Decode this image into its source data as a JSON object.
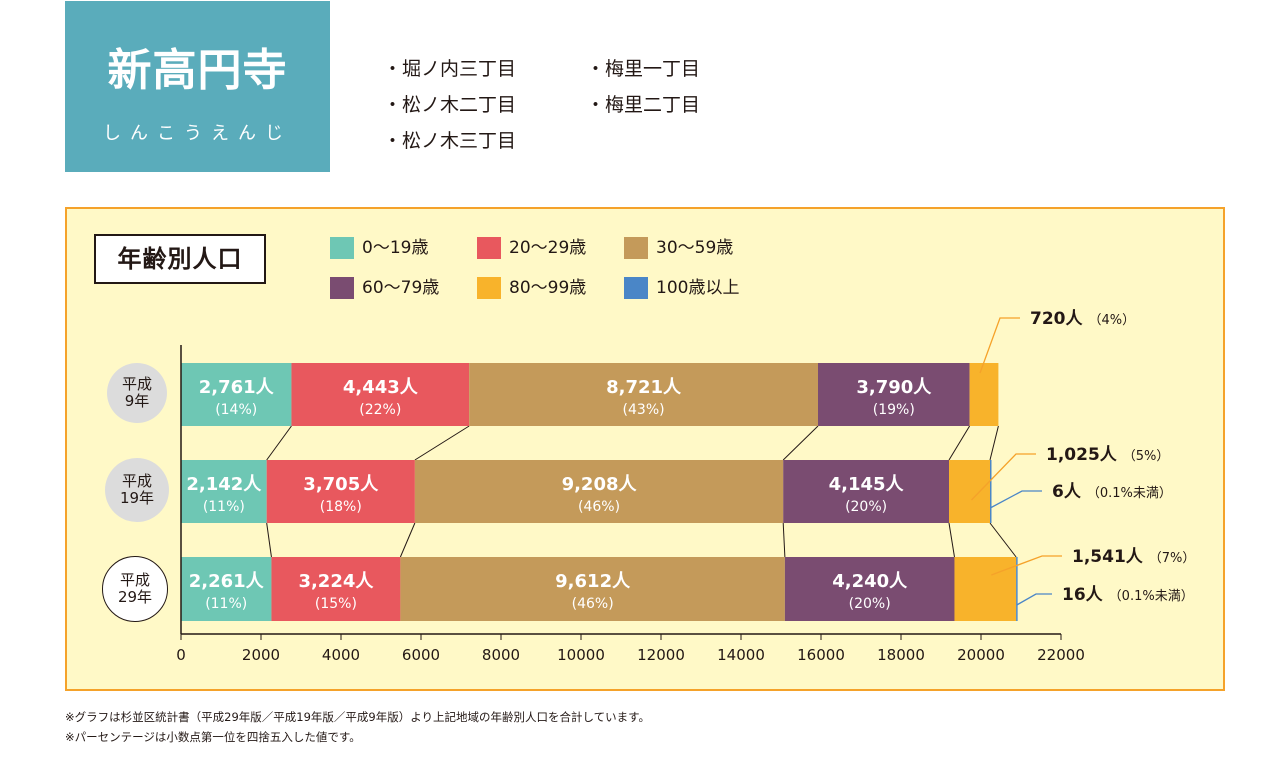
{
  "header": {
    "title": "新高円寺",
    "reading": "しんこうえんじ",
    "areas": [
      "・堀ノ内三丁目",
      "・松ノ木二丁目",
      "・松ノ木三丁目",
      "・梅里一丁目",
      "・梅里二丁目"
    ]
  },
  "chart_title": "年齢別人口",
  "footnotes": [
    "※グラフは杉並区統計書（平成29年版／平成19年版／平成9年版）より上記地域の年齢別人口を合計しています。",
    "※パーセンテージは小数点第一位を四捨五入した値です。"
  ],
  "colors": {
    "0-19": "#6ec7b4",
    "20-29": "#e8585e",
    "30-59": "#c49a5a",
    "60-79": "#7a4c71",
    "80-99": "#f8b32b",
    "100+": "#4a86c7",
    "panel_bg": "#fff9c7",
    "panel_border": "#f5a22a",
    "title_bg": "#5aacbb",
    "leader_line": "#f5a22a",
    "leader_line_blue": "#4a86c7"
  },
  "chart_data": {
    "type": "bar",
    "orientation": "horizontal",
    "stacked": true,
    "categories": [
      "平成9年",
      "平成19年",
      "平成29年"
    ],
    "category_lines": [
      [
        "平成",
        "9年"
      ],
      [
        "平成",
        "19年"
      ],
      [
        "平成",
        "29年"
      ]
    ],
    "series": [
      {
        "name": "0〜19歳",
        "key": "0-19",
        "values": [
          2761,
          2142,
          2261
        ],
        "value_labels": [
          "2,761人",
          "2,142人",
          "2,261人"
        ],
        "pct_labels": [
          "(14%)",
          "(11%)",
          "(11%)"
        ]
      },
      {
        "name": "20〜29歳",
        "key": "20-29",
        "values": [
          4443,
          3705,
          3224
        ],
        "value_labels": [
          "4,443人",
          "3,705人",
          "3,224人"
        ],
        "pct_labels": [
          "(22%)",
          "(18%)",
          "(15%)"
        ]
      },
      {
        "name": "30〜59歳",
        "key": "30-59",
        "values": [
          8721,
          9208,
          9612
        ],
        "value_labels": [
          "8,721人",
          "9,208人",
          "9,612人"
        ],
        "pct_labels": [
          "(43%)",
          "(46%)",
          "(46%)"
        ]
      },
      {
        "name": "60〜79歳",
        "key": "60-79",
        "values": [
          3790,
          4145,
          4240
        ],
        "value_labels": [
          "3,790人",
          "4,145人",
          "4,240人"
        ],
        "pct_labels": [
          "(19%)",
          "(20%)",
          "(20%)"
        ]
      },
      {
        "name": "80〜99歳",
        "key": "80-99",
        "values": [
          720,
          1025,
          1541
        ],
        "value_labels": [
          "720人",
          "1,025人",
          "1,541人"
        ],
        "pct_labels": [
          "（4%）",
          "（5%）",
          "（7%）"
        ]
      },
      {
        "name": "100歳以上",
        "key": "100+",
        "values": [
          0,
          6,
          16
        ],
        "value_labels": [
          "",
          "6人",
          "16人"
        ],
        "pct_labels": [
          "",
          "（0.1%未満）",
          "（0.1%未満）"
        ]
      }
    ],
    "xlim": [
      0,
      22000
    ],
    "xticks": [
      "0",
      "2000",
      "4000",
      "6000",
      "8000",
      "10000",
      "12000",
      "14000",
      "16000",
      "18000",
      "20000",
      "22000"
    ],
    "legend_position": "top"
  }
}
